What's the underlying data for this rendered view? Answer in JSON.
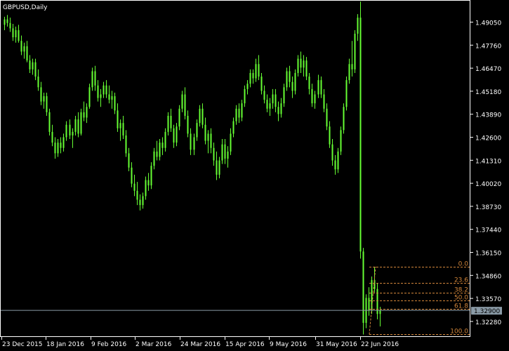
{
  "window": {
    "title": "GBPUSD,Daily"
  },
  "colors": {
    "background": "#000000",
    "frame": "#ffffff",
    "candle": "#66ff33",
    "current_line": "#8a9aa6",
    "price_box_bg": "#8a9aa6",
    "fib": "#d2863a",
    "axis_text": "#ffffff"
  },
  "current_price": "1.32900",
  "chart_data": {
    "type": "candlestick",
    "title": "GBPUSD,Daily",
    "symbol": "GBPUSD",
    "timeframe": "Daily",
    "y_ticks": [
      "1.49050",
      "1.47760",
      "1.46470",
      "1.45180",
      "1.43890",
      "1.42600",
      "1.41310",
      "1.40020",
      "1.38730",
      "1.37440",
      "1.36150",
      "1.34860",
      "1.33570",
      "1.32280"
    ],
    "x_ticks": [
      "23 Dec 2015",
      "18 Jan 2016",
      "9 Feb 2016",
      "2 Mar 2016",
      "24 Mar 2016",
      "15 Apr 2016",
      "9 May 2016",
      "31 May 2016",
      "22 Jun 2016"
    ],
    "ylim": [
      1.3145,
      1.5025
    ],
    "current_price": 1.329,
    "grid": false,
    "fibonacci": {
      "high": 1.3535,
      "low": 1.3155,
      "levels": [
        {
          "label": "0.0",
          "ratio": 0.0
        },
        {
          "label": "23.6",
          "ratio": 0.236
        },
        {
          "label": "38.2",
          "ratio": 0.382
        },
        {
          "label": "50.0",
          "ratio": 0.5
        },
        {
          "label": "61.8",
          "ratio": 0.618
        },
        {
          "label": "100.0",
          "ratio": 1.0
        }
      ]
    },
    "candles": [
      [
        1.489,
        1.4935,
        1.486,
        1.492
      ],
      [
        1.492,
        1.4945,
        1.488,
        1.49
      ],
      [
        1.49,
        1.493,
        1.485,
        1.487
      ],
      [
        1.487,
        1.4895,
        1.48,
        1.482
      ],
      [
        1.482,
        1.488,
        1.479,
        1.486
      ],
      [
        1.486,
        1.489,
        1.479,
        1.48
      ],
      [
        1.48,
        1.483,
        1.472,
        1.474
      ],
      [
        1.474,
        1.479,
        1.47,
        1.477
      ],
      [
        1.477,
        1.48,
        1.468,
        1.469
      ],
      [
        1.469,
        1.472,
        1.462,
        1.464
      ],
      [
        1.464,
        1.47,
        1.461,
        1.468
      ],
      [
        1.468,
        1.47,
        1.458,
        1.46
      ],
      [
        1.46,
        1.464,
        1.452,
        1.454
      ],
      [
        1.454,
        1.457,
        1.444,
        1.446
      ],
      [
        1.446,
        1.451,
        1.442,
        1.449
      ],
      [
        1.449,
        1.451,
        1.438,
        1.44
      ],
      [
        1.44,
        1.442,
        1.427,
        1.429
      ],
      [
        1.429,
        1.433,
        1.421,
        1.423
      ],
      [
        1.423,
        1.426,
        1.414,
        1.417
      ],
      [
        1.417,
        1.425,
        1.415,
        1.423
      ],
      [
        1.423,
        1.426,
        1.417,
        1.42
      ],
      [
        1.42,
        1.428,
        1.418,
        1.426
      ],
      [
        1.426,
        1.435,
        1.424,
        1.433
      ],
      [
        1.433,
        1.436,
        1.425,
        1.427
      ],
      [
        1.427,
        1.431,
        1.42,
        1.429
      ],
      [
        1.429,
        1.438,
        1.427,
        1.436
      ],
      [
        1.436,
        1.44,
        1.426,
        1.428
      ],
      [
        1.428,
        1.442,
        1.427,
        1.44
      ],
      [
        1.44,
        1.446,
        1.435,
        1.437
      ],
      [
        1.437,
        1.445,
        1.434,
        1.443
      ],
      [
        1.443,
        1.456,
        1.442,
        1.454
      ],
      [
        1.454,
        1.465,
        1.452,
        1.463
      ],
      [
        1.463,
        1.466,
        1.452,
        1.455
      ],
      [
        1.455,
        1.458,
        1.446,
        1.448
      ],
      [
        1.448,
        1.453,
        1.443,
        1.45
      ],
      [
        1.45,
        1.457,
        1.448,
        1.455
      ],
      [
        1.455,
        1.458,
        1.448,
        1.45
      ],
      [
        1.45,
        1.455,
        1.445,
        1.447
      ],
      [
        1.447,
        1.452,
        1.442,
        1.449
      ],
      [
        1.449,
        1.451,
        1.439,
        1.441
      ],
      [
        1.441,
        1.445,
        1.429,
        1.431
      ],
      [
        1.431,
        1.436,
        1.424,
        1.434
      ],
      [
        1.434,
        1.438,
        1.425,
        1.427
      ],
      [
        1.427,
        1.43,
        1.415,
        1.417
      ],
      [
        1.417,
        1.42,
        1.407,
        1.409
      ],
      [
        1.409,
        1.412,
        1.398,
        1.4
      ],
      [
        1.4,
        1.405,
        1.393,
        1.396
      ],
      [
        1.396,
        1.401,
        1.388,
        1.391
      ],
      [
        1.391,
        1.394,
        1.385,
        1.388
      ],
      [
        1.388,
        1.395,
        1.386,
        1.393
      ],
      [
        1.393,
        1.404,
        1.391,
        1.402
      ],
      [
        1.402,
        1.406,
        1.396,
        1.399
      ],
      [
        1.399,
        1.412,
        1.397,
        1.41
      ],
      [
        1.41,
        1.42,
        1.408,
        1.418
      ],
      [
        1.418,
        1.424,
        1.413,
        1.415
      ],
      [
        1.415,
        1.425,
        1.413,
        1.423
      ],
      [
        1.423,
        1.426,
        1.416,
        1.42
      ],
      [
        1.42,
        1.431,
        1.418,
        1.429
      ],
      [
        1.429,
        1.44,
        1.427,
        1.438
      ],
      [
        1.438,
        1.442,
        1.429,
        1.431
      ],
      [
        1.431,
        1.433,
        1.42,
        1.423
      ],
      [
        1.423,
        1.434,
        1.421,
        1.432
      ],
      [
        1.432,
        1.444,
        1.43,
        1.442
      ],
      [
        1.442,
        1.452,
        1.44,
        1.45
      ],
      [
        1.45,
        1.454,
        1.436,
        1.438
      ],
      [
        1.438,
        1.441,
        1.426,
        1.428
      ],
      [
        1.428,
        1.431,
        1.416,
        1.419
      ],
      [
        1.419,
        1.428,
        1.416,
        1.426
      ],
      [
        1.426,
        1.436,
        1.424,
        1.434
      ],
      [
        1.434,
        1.444,
        1.432,
        1.442
      ],
      [
        1.442,
        1.445,
        1.431,
        1.433
      ],
      [
        1.433,
        1.437,
        1.422,
        1.424
      ],
      [
        1.424,
        1.43,
        1.417,
        1.428
      ],
      [
        1.428,
        1.431,
        1.417,
        1.42
      ],
      [
        1.42,
        1.423,
        1.41,
        1.413
      ],
      [
        1.413,
        1.418,
        1.402,
        1.405
      ],
      [
        1.405,
        1.415,
        1.403,
        1.413
      ],
      [
        1.413,
        1.425,
        1.411,
        1.422
      ],
      [
        1.422,
        1.425,
        1.411,
        1.414
      ],
      [
        1.414,
        1.421,
        1.409,
        1.418
      ],
      [
        1.418,
        1.431,
        1.416,
        1.428
      ],
      [
        1.428,
        1.437,
        1.426,
        1.435
      ],
      [
        1.435,
        1.444,
        1.433,
        1.442
      ],
      [
        1.442,
        1.445,
        1.434,
        1.437
      ],
      [
        1.437,
        1.447,
        1.435,
        1.445
      ],
      [
        1.445,
        1.455,
        1.443,
        1.453
      ],
      [
        1.453,
        1.458,
        1.45,
        1.456
      ],
      [
        1.456,
        1.464,
        1.454,
        1.462
      ],
      [
        1.462,
        1.464,
        1.456,
        1.459
      ],
      [
        1.459,
        1.47,
        1.457,
        1.467
      ],
      [
        1.467,
        1.472,
        1.458,
        1.46
      ],
      [
        1.46,
        1.462,
        1.45,
        1.452
      ],
      [
        1.452,
        1.455,
        1.445,
        1.447
      ],
      [
        1.447,
        1.45,
        1.44,
        1.442
      ],
      [
        1.442,
        1.448,
        1.438,
        1.445
      ],
      [
        1.445,
        1.453,
        1.442,
        1.45
      ],
      [
        1.45,
        1.453,
        1.44,
        1.443
      ],
      [
        1.443,
        1.446,
        1.435,
        1.439
      ],
      [
        1.439,
        1.448,
        1.437,
        1.445
      ],
      [
        1.445,
        1.456,
        1.443,
        1.454
      ],
      [
        1.454,
        1.465,
        1.452,
        1.463
      ],
      [
        1.463,
        1.466,
        1.454,
        1.457
      ],
      [
        1.457,
        1.46,
        1.448,
        1.452
      ],
      [
        1.452,
        1.464,
        1.45,
        1.462
      ],
      [
        1.462,
        1.472,
        1.46,
        1.47
      ],
      [
        1.47,
        1.474,
        1.462,
        1.465
      ],
      [
        1.465,
        1.472,
        1.46,
        1.469
      ],
      [
        1.469,
        1.471,
        1.458,
        1.46
      ],
      [
        1.46,
        1.462,
        1.45,
        1.453
      ],
      [
        1.453,
        1.456,
        1.443,
        1.445
      ],
      [
        1.445,
        1.452,
        1.442,
        1.45
      ],
      [
        1.45,
        1.461,
        1.448,
        1.458
      ],
      [
        1.458,
        1.46,
        1.448,
        1.45
      ],
      [
        1.45,
        1.453,
        1.44,
        1.442
      ],
      [
        1.442,
        1.445,
        1.43,
        1.432
      ],
      [
        1.432,
        1.435,
        1.42,
        1.422
      ],
      [
        1.422,
        1.425,
        1.41,
        1.413
      ],
      [
        1.413,
        1.416,
        1.405,
        1.408
      ],
      [
        1.408,
        1.42,
        1.406,
        1.418
      ],
      [
        1.418,
        1.432,
        1.416,
        1.43
      ],
      [
        1.43,
        1.445,
        1.428,
        1.443
      ],
      [
        1.443,
        1.46,
        1.441,
        1.458
      ],
      [
        1.458,
        1.47,
        1.456,
        1.467
      ],
      [
        1.467,
        1.48,
        1.46,
        1.464
      ],
      [
        1.464,
        1.486,
        1.462,
        1.484
      ],
      [
        1.484,
        1.495,
        1.48,
        1.493
      ],
      [
        1.493,
        1.502,
        1.358,
        1.362
      ],
      [
        1.362,
        1.364,
        1.3155,
        1.322
      ],
      [
        1.322,
        1.338,
        1.319,
        1.336
      ],
      [
        1.336,
        1.342,
        1.326,
        1.329
      ],
      [
        1.329,
        1.348,
        1.327,
        1.346
      ],
      [
        1.346,
        1.3535,
        1.339,
        1.341
      ],
      [
        1.341,
        1.344,
        1.324,
        1.327
      ],
      [
        1.327,
        1.331,
        1.32,
        1.329
      ]
    ]
  }
}
